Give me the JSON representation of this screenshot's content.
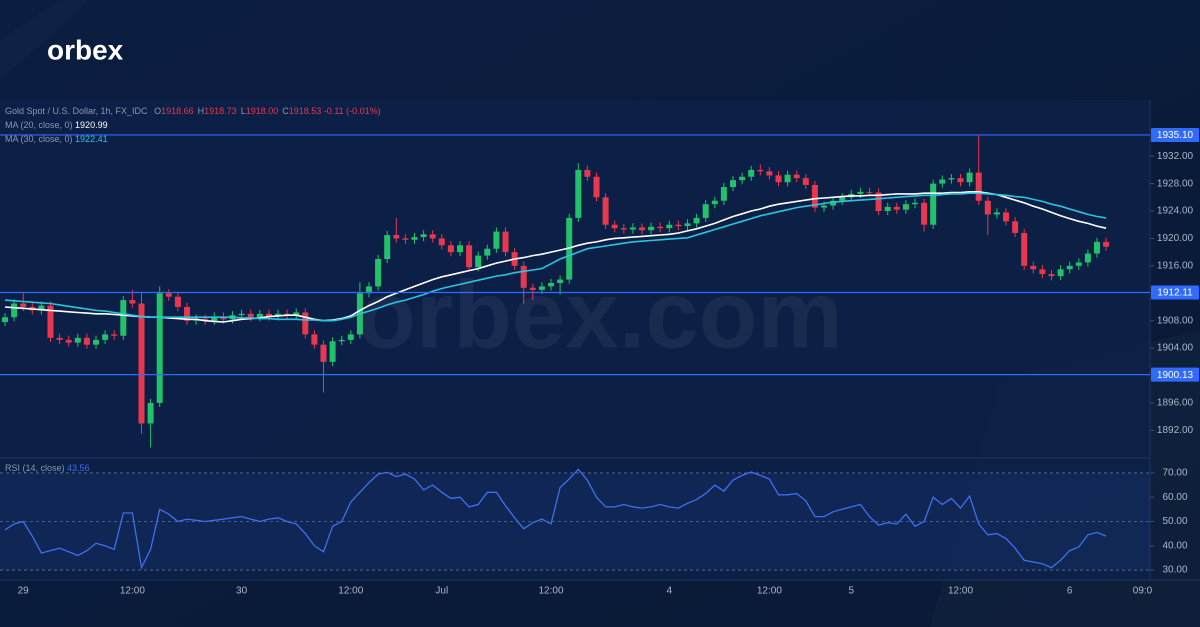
{
  "logo": "orbex",
  "watermark": "orbex.com",
  "chart_data": {
    "type": "candlestick",
    "title": "Gold Spot / U.S. Dollar, 1h, FX_IDC",
    "quote": [
      {
        "label": "O",
        "value": "1918.66"
      },
      {
        "label": "H",
        "value": "1918.73"
      },
      {
        "label": "L",
        "value": "1918.00"
      },
      {
        "label": "C",
        "value": "1918.53"
      }
    ],
    "change": "-0.11 (-0.01%)",
    "categories": [
      null,
      null,
      "29",
      null,
      null,
      null,
      null,
      null,
      null,
      null,
      null,
      null,
      null,
      null,
      "12:00",
      null,
      null,
      null,
      null,
      null,
      null,
      null,
      null,
      null,
      null,
      null,
      "30",
      null,
      null,
      null,
      null,
      null,
      null,
      null,
      null,
      null,
      null,
      null,
      "12:00",
      null,
      null,
      null,
      null,
      null,
      null,
      null,
      null,
      null,
      "Jul",
      null,
      null,
      null,
      null,
      null,
      null,
      null,
      null,
      null,
      null,
      null,
      "12:00",
      null,
      null,
      null,
      null,
      null,
      null,
      null,
      null,
      null,
      null,
      null,
      null,
      "4",
      null,
      null,
      null,
      null,
      null,
      null,
      null,
      null,
      null,
      null,
      "12:00",
      null,
      null,
      null,
      null,
      null,
      null,
      null,
      null,
      "5",
      null,
      null,
      null,
      null,
      null,
      null,
      null,
      null,
      null,
      null,
      null,
      "12:00",
      null,
      null,
      null,
      null,
      null,
      null,
      null,
      null,
      null,
      null,
      null,
      "6",
      null,
      null,
      null,
      null,
      null,
      null,
      null,
      "09:0"
    ],
    "open": [
      1907.8,
      1908.5,
      1910.5,
      1910.0,
      1909.5,
      1910.2,
      1905.5,
      1905.2,
      1904.8,
      1905.5,
      1904.5,
      1905.2,
      1906.0,
      1905.8,
      1911.0,
      1910.5,
      1893.0,
      1896.0,
      1912.0,
      1911.5,
      1910.0,
      1908.0,
      1908.3,
      1908.0,
      1908.6,
      1908.2,
      1908.8,
      1909.0,
      1908.5,
      1909.0,
      1908.6,
      1909.0,
      1908.7,
      1909.2,
      1906.0,
      1904.5,
      1902.0,
      1905.0,
      1905.2,
      1906.0,
      1912.0,
      1913.0,
      1917.0,
      1920.5,
      1920.0,
      1919.8,
      1920.2,
      1920.6,
      1920.0,
      1919.0,
      1918.0,
      1919.0,
      1915.8,
      1917.5,
      1918.5,
      1921.0,
      1918.0,
      1916.0,
      1912.8,
      1912.5,
      1913.0,
      1913.5,
      1914.0,
      1923.0,
      1930.0,
      1929.0,
      1926.0,
      1922.0,
      1921.5,
      1921.3,
      1921.6,
      1921.2,
      1921.7,
      1921.5,
      1922.0,
      1921.8,
      1922.2,
      1923.0,
      1925.0,
      1925.5,
      1927.5,
      1928.5,
      1929.0,
      1930.0,
      1929.8,
      1929.2,
      1928.2,
      1929.3,
      1928.8,
      1927.8,
      1924.5,
      1924.8,
      1925.5,
      1926.0,
      1926.5,
      1926.8,
      1926.7,
      1924.0,
      1924.6,
      1924.2,
      1925.0,
      1925.2,
      1922.0,
      1928.0,
      1928.6,
      1928.8,
      1928.2,
      1929.6,
      1925.5,
      1923.5,
      1923.8,
      1922.5,
      1920.8,
      1916.0,
      1915.5,
      1914.8,
      1914.5,
      1915.5,
      1916.0,
      1916.5,
      1917.8,
      1919.5,
      null,
      null,
      null,
      null
    ],
    "high": [
      1909.1,
      1911.1,
      1912.0,
      1910.6,
      1910.8,
      1910.8,
      1906.1,
      1905.8,
      1906.1,
      1906.1,
      1905.8,
      1906.6,
      1906.6,
      1911.6,
      1912.5,
      1912.0,
      1896.6,
      1913.0,
      1912.6,
      1912.1,
      1910.6,
      1908.9,
      1908.9,
      1909.2,
      1909.2,
      1909.4,
      1909.6,
      1909.6,
      1909.6,
      1909.6,
      1909.6,
      1909.6,
      1909.8,
      1909.8,
      1906.6,
      1905.1,
      1905.6,
      1905.8,
      1906.6,
      1913.6,
      1913.6,
      1917.6,
      1921.1,
      1923.0,
      1920.6,
      1920.8,
      1921.2,
      1921.2,
      1920.6,
      1919.6,
      1919.6,
      1919.6,
      1918.1,
      1919.1,
      1921.6,
      1921.6,
      1918.6,
      1916.6,
      1913.4,
      1913.6,
      1914.1,
      1914.6,
      1923.6,
      1931.0,
      1930.6,
      1929.6,
      1926.6,
      1922.6,
      1922.1,
      1922.2,
      1922.2,
      1922.3,
      1922.3,
      1922.6,
      1922.6,
      1922.8,
      1923.6,
      1925.6,
      1926.1,
      1928.1,
      1929.1,
      1929.6,
      1930.6,
      1930.8,
      1930.4,
      1929.8,
      1929.9,
      1929.9,
      1929.4,
      1928.4,
      1925.4,
      1926.1,
      1926.6,
      1927.1,
      1927.4,
      1927.4,
      1927.3,
      1925.2,
      1925.2,
      1925.6,
      1925.8,
      1925.8,
      1928.6,
      1929.2,
      1929.4,
      1929.4,
      1930.2,
      1935.1,
      1926.1,
      1924.4,
      1924.4,
      1923.1,
      1921.4,
      1916.6,
      1916.1,
      1915.4,
      1916.1,
      1916.6,
      1917.1,
      1918.4,
      1920.1,
      1920.1,
      null,
      null,
      null,
      null
    ],
    "low": [
      1907.2,
      1907.9,
      1909.4,
      1908.9,
      1908.9,
      1904.9,
      1904.6,
      1904.2,
      1904.2,
      1903.9,
      1903.9,
      1904.6,
      1905.2,
      1905.2,
      1909.9,
      1891.5,
      1889.5,
      1895.4,
      1910.9,
      1909.4,
      1907.4,
      1907.4,
      1907.4,
      1907.4,
      1907.6,
      1907.6,
      1908.2,
      1907.9,
      1907.9,
      1908.0,
      1908.0,
      1908.1,
      1908.1,
      1905.4,
      1903.9,
      1897.5,
      1901.4,
      1904.4,
      1904.6,
      1905.4,
      1911.4,
      1912.4,
      1916.4,
      1919.4,
      1919.2,
      1919.2,
      1919.6,
      1919.4,
      1918.4,
      1917.4,
      1917.4,
      1915.2,
      1915.2,
      1916.9,
      1917.9,
      1917.4,
      1915.4,
      1910.5,
      1911.0,
      1911.9,
      1912.4,
      1911.8,
      1913.4,
      1922.4,
      1928.4,
      1925.4,
      1921.4,
      1920.9,
      1920.7,
      1920.7,
      1920.6,
      1920.6,
      1920.9,
      1920.9,
      1921.2,
      1921.2,
      1921.6,
      1922.4,
      1924.4,
      1924.9,
      1926.9,
      1927.9,
      1928.4,
      1929.2,
      1928.6,
      1927.6,
      1927.6,
      1928.2,
      1927.2,
      1923.9,
      1923.9,
      1924.2,
      1924.9,
      1925.4,
      1925.9,
      1926.1,
      1923.4,
      1923.4,
      1923.6,
      1923.6,
      1924.4,
      1921.0,
      1921.4,
      1927.4,
      1928.0,
      1927.6,
      1927.6,
      1924.9,
      1920.5,
      1922.9,
      1921.9,
      1920.2,
      1915.4,
      1914.9,
      1914.2,
      1913.9,
      1913.9,
      1914.9,
      1915.4,
      1915.9,
      1917.2,
      1918.2,
      null,
      null,
      null,
      null
    ],
    "close": [
      1908.5,
      1910.5,
      1910.0,
      1909.5,
      1910.2,
      1905.5,
      1905.2,
      1904.8,
      1905.5,
      1904.5,
      1905.2,
      1906.0,
      1905.8,
      1911.0,
      1910.5,
      1893.0,
      1896.0,
      1912.0,
      1911.5,
      1910.0,
      1908.0,
      1908.3,
      1908.0,
      1908.6,
      1908.2,
      1908.8,
      1909.0,
      1908.5,
      1909.0,
      1908.6,
      1909.0,
      1908.7,
      1909.2,
      1906.0,
      1904.5,
      1902.0,
      1905.0,
      1905.2,
      1906.0,
      1912.0,
      1913.0,
      1917.0,
      1920.5,
      1920.0,
      1919.8,
      1920.2,
      1920.6,
      1920.0,
      1919.0,
      1918.0,
      1919.0,
      1915.8,
      1917.5,
      1918.5,
      1921.0,
      1918.0,
      1916.0,
      1912.8,
      1912.5,
      1913.0,
      1913.5,
      1914.0,
      1923.0,
      1930.0,
      1929.0,
      1926.0,
      1922.0,
      1921.5,
      1921.3,
      1921.6,
      1921.2,
      1921.7,
      1921.5,
      1922.0,
      1921.8,
      1922.2,
      1923.0,
      1925.0,
      1925.5,
      1927.5,
      1928.5,
      1929.0,
      1930.0,
      1929.8,
      1929.2,
      1928.2,
      1929.3,
      1928.8,
      1927.8,
      1924.5,
      1924.8,
      1925.5,
      1926.0,
      1926.5,
      1926.8,
      1926.7,
      1924.0,
      1924.6,
      1924.2,
      1925.0,
      1925.2,
      1922.0,
      1928.0,
      1928.6,
      1928.8,
      1928.2,
      1929.6,
      1925.5,
      1923.5,
      1923.8,
      1922.5,
      1920.8,
      1916.0,
      1915.5,
      1914.8,
      1914.5,
      1915.5,
      1916.0,
      1916.5,
      1917.8,
      1919.5,
      1918.8,
      null,
      null,
      null,
      null
    ],
    "up_color": "#22c26b",
    "down_color": "#e8384f",
    "series": [
      {
        "name": "MA (20, close, 0)",
        "value_label": "1920.99",
        "color": "#ffffff",
        "values": [
          1910.0,
          1909.9,
          1909.8,
          1909.7,
          1909.6,
          1909.5,
          1909.4,
          1909.3,
          1909.2,
          1909.1,
          1909.0,
          1909.0,
          1908.9,
          1908.8,
          1908.7,
          1908.6,
          1908.5,
          1908.5,
          1908.4,
          1908.3,
          1908.2,
          1908.2,
          1908.0,
          1907.9,
          1907.8,
          1908.0,
          1908.2,
          1908.3,
          1908.4,
          1908.6,
          1908.7,
          1908.8,
          1908.8,
          1908.5,
          1908.2,
          1908.0,
          1908.1,
          1908.3,
          1908.7,
          1909.5,
          1910.2,
          1910.8,
          1911.5,
          1912.0,
          1912.5,
          1913.0,
          1913.5,
          1914.0,
          1914.4,
          1914.7,
          1915.0,
          1915.3,
          1915.6,
          1916.0,
          1916.4,
          1916.7,
          1917.0,
          1917.2,
          1917.5,
          1917.7,
          1918.0,
          1918.3,
          1918.6,
          1919.0,
          1919.3,
          1919.5,
          1919.8,
          1920.0,
          1920.1,
          1920.2,
          1920.3,
          1920.4,
          1920.5,
          1920.6,
          1920.8,
          1921.1,
          1921.4,
          1921.8,
          1922.2,
          1922.7,
          1923.2,
          1923.6,
          1924.0,
          1924.3,
          1924.7,
          1925.0,
          1925.2,
          1925.4,
          1925.6,
          1925.8,
          1925.9,
          1926.0,
          1926.1,
          1926.2,
          1926.2,
          1926.3,
          1926.3,
          1926.4,
          1926.5,
          1926.5,
          1926.5,
          1926.6,
          1926.6,
          1926.6,
          1926.7,
          1926.7,
          1926.8,
          1926.8,
          1926.6,
          1926.4,
          1926.0,
          1925.6,
          1925.2,
          1924.7,
          1924.3,
          1923.8,
          1923.3,
          1922.9,
          1922.5,
          1922.2,
          1921.8,
          1921.5,
          null,
          null,
          null,
          null
        ]
      },
      {
        "name": "MA (30, close, 0)",
        "value_label": "1922.41",
        "color": "#2bc4e0",
        "values": [
          1911.0,
          1910.9,
          1910.8,
          1910.7,
          1910.6,
          1910.5,
          1910.3,
          1910.1,
          1909.9,
          1909.7,
          1909.5,
          1909.4,
          1909.2,
          1909.0,
          1908.8,
          1908.6,
          1908.5,
          1908.5,
          1908.5,
          1908.5,
          1908.5,
          1908.5,
          1908.5,
          1908.5,
          1908.5,
          1908.5,
          1908.4,
          1908.4,
          1908.3,
          1908.3,
          1908.2,
          1908.2,
          1908.2,
          1908.1,
          1908.1,
          1908.0,
          1908.0,
          1908.2,
          1908.5,
          1909.0,
          1909.4,
          1909.8,
          1910.3,
          1910.7,
          1911.0,
          1911.4,
          1911.8,
          1912.3,
          1912.7,
          1913.0,
          1913.3,
          1913.6,
          1913.9,
          1914.2,
          1914.5,
          1914.7,
          1915.0,
          1915.2,
          1915.4,
          1915.6,
          1916.3,
          1917.0,
          1917.5,
          1918.0,
          1918.5,
          1918.7,
          1918.9,
          1919.1,
          1919.3,
          1919.5,
          1919.6,
          1919.7,
          1919.8,
          1919.9,
          1920.0,
          1920.1,
          1920.5,
          1920.9,
          1921.3,
          1921.7,
          1922.1,
          1922.5,
          1922.9,
          1923.3,
          1923.6,
          1923.9,
          1924.2,
          1924.5,
          1924.7,
          1924.9,
          1925.1,
          1925.3,
          1925.4,
          1925.5,
          1925.6,
          1925.7,
          1925.8,
          1925.9,
          1926.0,
          1926.1,
          1926.2,
          1926.3,
          1926.3,
          1926.4,
          1926.5,
          1926.5,
          1926.6,
          1926.6,
          1926.5,
          1926.4,
          1926.3,
          1926.1,
          1926.0,
          1925.7,
          1925.4,
          1925.0,
          1924.7,
          1924.3,
          1923.9,
          1923.5,
          1923.2,
          1923.0,
          null,
          null,
          null,
          null
        ]
      }
    ],
    "ylim": [
      1888.4,
      1940.2
    ],
    "yticks": [
      {
        "value": 1892,
        "label": "1892.00"
      },
      {
        "value": 1896,
        "label": "1896.00"
      },
      {
        "value": 1904,
        "label": "1904.00"
      },
      {
        "value": 1908,
        "label": "1908.00"
      },
      {
        "value": 1916,
        "label": "1916.00"
      },
      {
        "value": 1920,
        "label": "1920.00"
      },
      {
        "value": 1924,
        "label": "1924.00"
      },
      {
        "value": 1928,
        "label": "1928.00"
      },
      {
        "value": 1932,
        "label": "1932.00"
      }
    ],
    "levels": [
      {
        "value": 1935.1,
        "label": "1935.10"
      },
      {
        "value": 1912.11,
        "label": "1912.11"
      },
      {
        "value": 1900.13,
        "label": "1900.13"
      }
    ],
    "level_color": "#2f6bff",
    "rsi": {
      "name": "RSI (14, close)",
      "value_label": "43.56",
      "color": "#3d6ff0",
      "ylim": [
        25.9,
        74.5
      ],
      "yticks": [
        {
          "value": 30,
          "label": "30.00"
        },
        {
          "value": 40,
          "label": "40.00"
        },
        {
          "value": 50,
          "label": "50.00"
        },
        {
          "value": 60,
          "label": "60.00"
        },
        {
          "value": 70,
          "label": "70.00"
        }
      ],
      "guides": [
        30,
        50,
        70
      ],
      "values": [
        46.5,
        49,
        50,
        44,
        37,
        38,
        39,
        37.5,
        36,
        38,
        41,
        40,
        38.5,
        53.5,
        53.5,
        31,
        38.5,
        55,
        53,
        50,
        51,
        50.5,
        50,
        50.5,
        51,
        51.5,
        52,
        51,
        50,
        51,
        51.5,
        50,
        49,
        45,
        40,
        37.5,
        48,
        50,
        58,
        62,
        66,
        69.5,
        70.2,
        68.5,
        69.5,
        67.5,
        63,
        65,
        62,
        59.5,
        60,
        56,
        57,
        62,
        62,
        56.5,
        51.5,
        47,
        49.5,
        51,
        49,
        64,
        67.5,
        71.5,
        67,
        60,
        56,
        56,
        57,
        56,
        55.5,
        56,
        57,
        56,
        55.5,
        57.5,
        59,
        61.5,
        65,
        62.5,
        67,
        69,
        70.4,
        69,
        67.5,
        61,
        61,
        61.5,
        58.5,
        52,
        52,
        54,
        55,
        56,
        57,
        52,
        48.5,
        49.5,
        49,
        53,
        48,
        50,
        60,
        57,
        59.5,
        55.5,
        60.5,
        49,
        44.5,
        45,
        43,
        39,
        34,
        33.3,
        32.6,
        31,
        34,
        38,
        39.5,
        44.5,
        45.5,
        44,
        null,
        null,
        null,
        null
      ]
    }
  }
}
